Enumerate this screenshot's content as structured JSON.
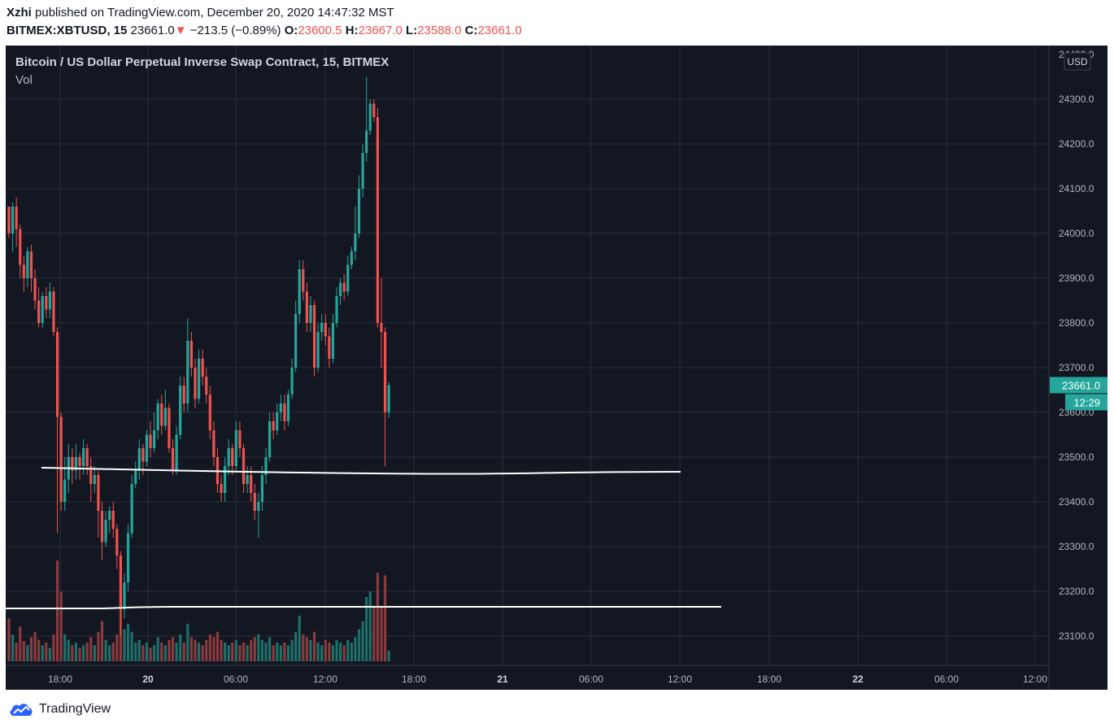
{
  "header": {
    "author": "Xzhi",
    "published_text": "published on TradingView.com, December 20, 2020 14:47:32 MST",
    "symbol": "BITMEX:XBTUSD, 15",
    "last": "23661.0",
    "arrow": "▼",
    "change": "−213.5 (−0.89%)",
    "o_label": "O:",
    "o_value": "23600.5",
    "h_label": "H:",
    "h_value": "23667.0",
    "l_label": "L:",
    "l_value": "23588.0",
    "c_label": "C:",
    "c_value": "23661.0"
  },
  "chart": {
    "title": "Bitcoin / US Dollar Perpetual Inverse Swap Contract, 15, BITMEX",
    "vol_label": "Vol",
    "currency_button": "USD",
    "top_tick_partial": "24400.0",
    "current_price_label": "23661.0",
    "countdown_label": "12:29"
  },
  "colors": {
    "background": "#131722",
    "grid": "#2a2e39",
    "up": "#26a69a",
    "down": "#ef5350",
    "up_volume": "#1e6f69",
    "down_volume": "#8b3a3d",
    "axis_text": "#b2b5be",
    "price_tag": "#26a69a",
    "lines": "#ffffff"
  },
  "footer": {
    "brand": "TradingView",
    "logo_icon": "tradingview-cloud-icon"
  },
  "chart_data": {
    "type": "candlestick",
    "interval": "15",
    "y_ticks": [
      24300,
      24200,
      24100,
      24000,
      23900,
      23800,
      23700,
      23600,
      23500,
      23400,
      23300,
      23200,
      23100
    ],
    "ylim": [
      23050,
      24400
    ],
    "x_ticks": [
      "18:00",
      "20",
      "06:00",
      "12:00",
      "18:00",
      "21",
      "06:00",
      "12:00",
      "18:00",
      "22",
      "06:00",
      "12:00"
    ],
    "x_bold_ticks": [
      "20",
      "21",
      "22"
    ],
    "last_price": 23661.0,
    "horizontal_lines": [
      {
        "from": "2020-12-19 17:45",
        "to": "2020-12-21 12:00",
        "price_start": 23475,
        "price_end": 23465
      },
      {
        "from": "2020-12-19 15:45",
        "to": "2020-12-21 15:00",
        "price_start": 23158,
        "price_end": 23165
      }
    ],
    "candles": [
      [
        24060,
        24000,
        23990,
        24060,
        32
      ],
      [
        24000,
        24060,
        23960,
        24070,
        20
      ],
      [
        24060,
        24010,
        23970,
        24080,
        14
      ],
      [
        24010,
        23930,
        23900,
        24020,
        26
      ],
      [
        23930,
        23900,
        23870,
        23950,
        15
      ],
      [
        23900,
        23960,
        23880,
        23970,
        12
      ],
      [
        23960,
        23900,
        23870,
        23975,
        18
      ],
      [
        23900,
        23850,
        23830,
        23920,
        22
      ],
      [
        23850,
        23800,
        23790,
        23880,
        16
      ],
      [
        23800,
        23860,
        23790,
        23870,
        12
      ],
      [
        23860,
        23830,
        23810,
        23880,
        14
      ],
      [
        23830,
        23870,
        23810,
        23890,
        10
      ],
      [
        23870,
        23780,
        23770,
        23880,
        20
      ],
      [
        23780,
        23590,
        23330,
        23790,
        75
      ],
      [
        23590,
        23400,
        23380,
        23600,
        52
      ],
      [
        23400,
        23450,
        23380,
        23500,
        20
      ],
      [
        23450,
        23500,
        23420,
        23530,
        16
      ],
      [
        23500,
        23470,
        23440,
        23520,
        12
      ],
      [
        23470,
        23500,
        23450,
        23530,
        14
      ],
      [
        23500,
        23480,
        23450,
        23510,
        10
      ],
      [
        23480,
        23520,
        23460,
        23540,
        12
      ],
      [
        23520,
        23480,
        23460,
        23530,
        14
      ],
      [
        23480,
        23440,
        23400,
        23500,
        18
      ],
      [
        23440,
        23460,
        23420,
        23480,
        12
      ],
      [
        23460,
        23380,
        23320,
        23470,
        22
      ],
      [
        23380,
        23310,
        23270,
        23400,
        30
      ],
      [
        23310,
        23360,
        23300,
        23380,
        16
      ],
      [
        23360,
        23380,
        23330,
        23390,
        12
      ],
      [
        23380,
        23340,
        23320,
        23400,
        14
      ],
      [
        23340,
        23280,
        23250,
        23350,
        20
      ],
      [
        23280,
        23160,
        23100,
        23290,
        40
      ],
      [
        23160,
        23220,
        23140,
        23240,
        24
      ],
      [
        23220,
        23330,
        23200,
        23350,
        28
      ],
      [
        23330,
        23440,
        23320,
        23460,
        22
      ],
      [
        23440,
        23470,
        23430,
        23490,
        14
      ],
      [
        23470,
        23520,
        23450,
        23540,
        16
      ],
      [
        23520,
        23490,
        23460,
        23530,
        12
      ],
      [
        23490,
        23550,
        23480,
        23560,
        14
      ],
      [
        23550,
        23520,
        23500,
        23580,
        10
      ],
      [
        23520,
        23560,
        23510,
        23600,
        12
      ],
      [
        23560,
        23620,
        23540,
        23630,
        18
      ],
      [
        23620,
        23570,
        23550,
        23640,
        14
      ],
      [
        23570,
        23610,
        23560,
        23650,
        12
      ],
      [
        23610,
        23520,
        23510,
        23620,
        16
      ],
      [
        23520,
        23470,
        23460,
        23540,
        18
      ],
      [
        23470,
        23550,
        23460,
        23570,
        14
      ],
      [
        23550,
        23660,
        23540,
        23680,
        20
      ],
      [
        23660,
        23620,
        23600,
        23680,
        14
      ],
      [
        23620,
        23760,
        23600,
        23810,
        28
      ],
      [
        23760,
        23700,
        23680,
        23780,
        18
      ],
      [
        23700,
        23630,
        23610,
        23720,
        16
      ],
      [
        23630,
        23720,
        23620,
        23740,
        14
      ],
      [
        23720,
        23680,
        23660,
        23740,
        12
      ],
      [
        23680,
        23640,
        23620,
        23700,
        16
      ],
      [
        23640,
        23560,
        23540,
        23660,
        20
      ],
      [
        23560,
        23500,
        23480,
        23580,
        18
      ],
      [
        23500,
        23440,
        23420,
        23520,
        22
      ],
      [
        23440,
        23420,
        23400,
        23460,
        16
      ],
      [
        23420,
        23480,
        23400,
        23500,
        14
      ],
      [
        23480,
        23520,
        23460,
        23540,
        12
      ],
      [
        23520,
        23480,
        23460,
        23530,
        14
      ],
      [
        23480,
        23560,
        23470,
        23580,
        16
      ],
      [
        23560,
        23520,
        23500,
        23580,
        12
      ],
      [
        23520,
        23440,
        23420,
        23530,
        14
      ],
      [
        23440,
        23460,
        23420,
        23480,
        12
      ],
      [
        23460,
        23420,
        23400,
        23480,
        16
      ],
      [
        23420,
        23380,
        23360,
        23440,
        18
      ],
      [
        23380,
        23400,
        23320,
        23420,
        20
      ],
      [
        23400,
        23460,
        23380,
        23480,
        16
      ],
      [
        23460,
        23500,
        23440,
        23520,
        14
      ],
      [
        23500,
        23580,
        23490,
        23600,
        18
      ],
      [
        23580,
        23560,
        23540,
        23600,
        12
      ],
      [
        23560,
        23600,
        23550,
        23620,
        14
      ],
      [
        23600,
        23620,
        23580,
        23640,
        12
      ],
      [
        23620,
        23580,
        23560,
        23640,
        14
      ],
      [
        23580,
        23640,
        23570,
        23650,
        12
      ],
      [
        23640,
        23700,
        23630,
        23720,
        16
      ],
      [
        23700,
        23820,
        23690,
        23850,
        22
      ],
      [
        23820,
        23920,
        23800,
        23940,
        34
      ],
      [
        23920,
        23870,
        23850,
        23940,
        20
      ],
      [
        23870,
        23800,
        23780,
        23890,
        18
      ],
      [
        23800,
        23840,
        23780,
        23860,
        16
      ],
      [
        23840,
        23700,
        23680,
        23850,
        22
      ],
      [
        23700,
        23780,
        23690,
        23800,
        14
      ],
      [
        23780,
        23800,
        23760,
        23820,
        12
      ],
      [
        23800,
        23770,
        23750,
        23820,
        16
      ],
      [
        23770,
        23720,
        23700,
        23790,
        14
      ],
      [
        23720,
        23800,
        23710,
        23820,
        12
      ],
      [
        23800,
        23860,
        23790,
        23880,
        16
      ],
      [
        23860,
        23890,
        23840,
        23900,
        14
      ],
      [
        23890,
        23870,
        23850,
        23910,
        12
      ],
      [
        23870,
        23930,
        23860,
        23950,
        16
      ],
      [
        23930,
        23960,
        23920,
        23970,
        14
      ],
      [
        23960,
        24000,
        23940,
        24060,
        18
      ],
      [
        24000,
        24100,
        23990,
        24130,
        24
      ],
      [
        24100,
        24180,
        24080,
        24200,
        30
      ],
      [
        24180,
        24230,
        24160,
        24350,
        48
      ],
      [
        24230,
        24290,
        24220,
        24300,
        52
      ],
      [
        24290,
        24260,
        24250,
        24300,
        40
      ],
      [
        24260,
        23800,
        23790,
        24280,
        66
      ],
      [
        23800,
        23780,
        23700,
        23900,
        40
      ],
      [
        23780,
        23600,
        23480,
        23790,
        64
      ],
      [
        23600,
        23661,
        23588,
        23667,
        8
      ]
    ]
  }
}
